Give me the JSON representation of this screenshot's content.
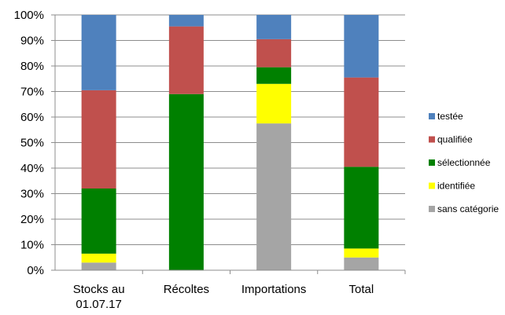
{
  "chart_data": {
    "type": "bar",
    "stacked": true,
    "percent_stacked": true,
    "categories": [
      "Stocks au 01.07.17",
      "Récoltes",
      "Importations",
      "Total"
    ],
    "category_label_lines": [
      [
        "Stocks au",
        "01.07.17"
      ],
      [
        "Récoltes"
      ],
      [
        "Importations"
      ],
      [
        "Total"
      ]
    ],
    "series": [
      {
        "name": "sans catégorie",
        "color": "#a5a5a5",
        "values": [
          3,
          0,
          57.5,
          5
        ]
      },
      {
        "name": "identifiée",
        "color": "#ffff00",
        "values": [
          3.5,
          0,
          15.5,
          3.5
        ]
      },
      {
        "name": "sélectionnée",
        "color": "#008000",
        "values": [
          25.5,
          69,
          6.5,
          32
        ]
      },
      {
        "name": "qualifiée",
        "color": "#c0504d",
        "values": [
          38.5,
          26.5,
          11,
          35
        ]
      },
      {
        "name": "testée",
        "color": "#4f81bd",
        "values": [
          29.5,
          4.5,
          9.5,
          24.5
        ]
      }
    ],
    "legend_order": [
      "testée",
      "qualifiée",
      "sélectionnée",
      "identifiée",
      "sans catégorie"
    ],
    "y_ticks": [
      "0%",
      "10%",
      "20%",
      "30%",
      "40%",
      "50%",
      "60%",
      "70%",
      "80%",
      "90%",
      "100%"
    ],
    "ylim": [
      0,
      100
    ],
    "grid": true,
    "legend_position": "right"
  }
}
